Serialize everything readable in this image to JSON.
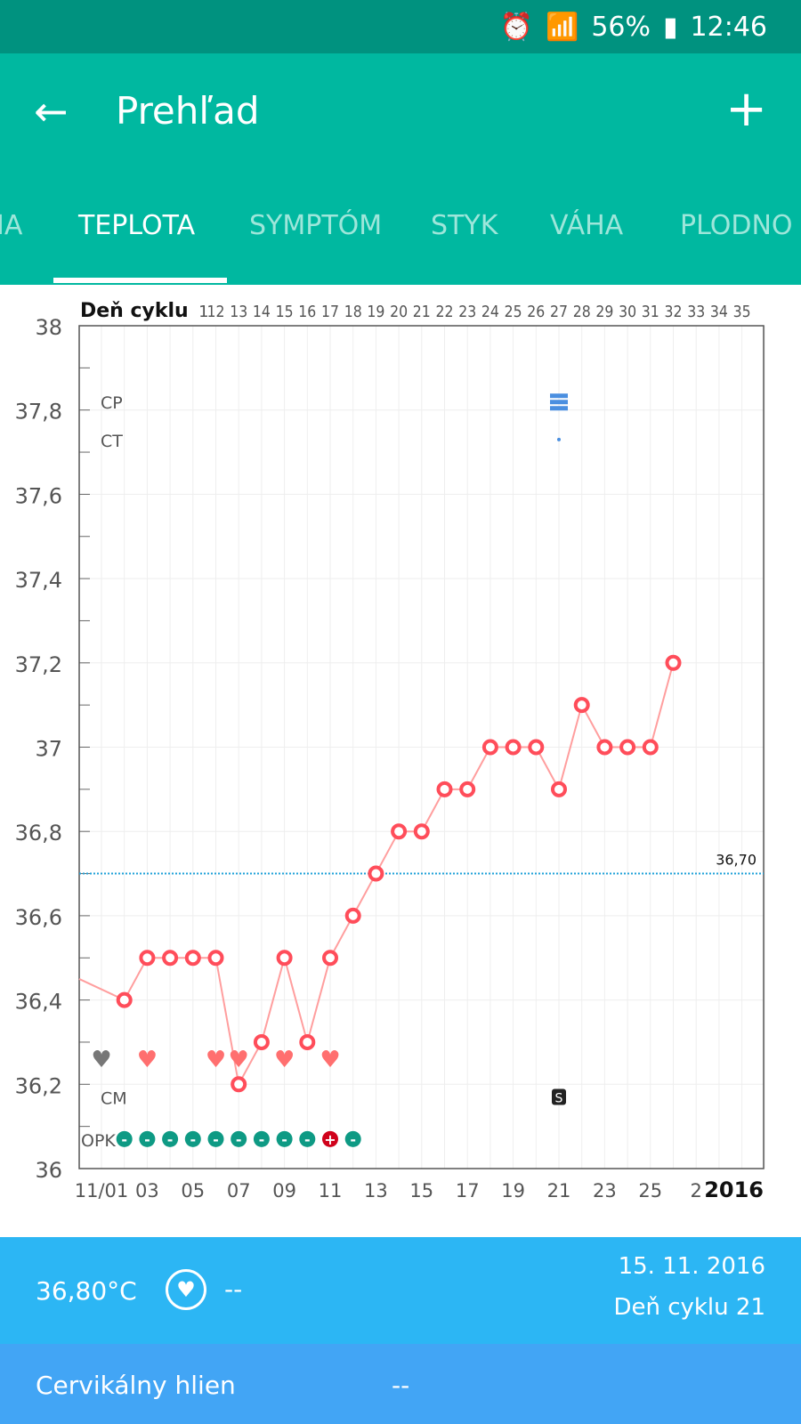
{
  "status_bar": {
    "battery": "56%",
    "time": "12:46"
  },
  "app_bar": {
    "title": "Prehľad",
    "back_icon": "arrow-left-icon",
    "add_icon": "plus-icon"
  },
  "tabs": [
    {
      "label": "IA"
    },
    {
      "label": "TEPLOTA"
    },
    {
      "label": "SYMPTÓM"
    },
    {
      "label": "STYK"
    },
    {
      "label": "VÁHA"
    },
    {
      "label": "PLODNO"
    }
  ],
  "chart_data": {
    "type": "line",
    "top_axis_label": "Deň cyklu",
    "cycle_day_ticks": [
      "1",
      "12",
      "13",
      "14",
      "15",
      "16",
      "17",
      "18",
      "19",
      "20",
      "21",
      "22",
      "23",
      "24",
      "25",
      "26",
      "27",
      "28",
      "29",
      "30",
      "31",
      "32",
      "33",
      "34",
      "35"
    ],
    "ylim": [
      36,
      38
    ],
    "y_ticks": [
      "36",
      "36,2",
      "36,4",
      "36,6",
      "36,8",
      "37",
      "37,2",
      "37,4",
      "37,6",
      "37,8",
      "38"
    ],
    "x_tick_labels": [
      "11/01",
      "03",
      "05",
      "07",
      "09",
      "11",
      "13",
      "15",
      "17",
      "19",
      "21",
      "23",
      "25",
      "2"
    ],
    "year": "2016",
    "x_days": [
      2,
      3,
      4,
      5,
      6,
      7,
      8,
      9,
      10,
      11,
      12,
      13,
      14,
      15,
      16,
      17,
      18,
      19,
      20,
      21,
      22,
      23,
      24,
      25,
      26
    ],
    "temps": [
      36.4,
      36.5,
      36.5,
      36.5,
      36.5,
      36.2,
      36.3,
      36.5,
      36.3,
      36.5,
      36.6,
      36.7,
      36.8,
      36.8,
      36.9,
      36.9,
      37.0,
      37.0,
      37.0,
      36.9,
      37.1,
      37.0,
      37.0,
      37.0,
      37.2
    ],
    "lead_in_temp": 36.45,
    "coverline": {
      "value": 36.7,
      "label": "36,70"
    },
    "row_labels": {
      "cp": "CP",
      "ct": "CT",
      "cm": "CM",
      "opk": "OPK"
    },
    "cp_days": [
      21
    ],
    "ct_days": [
      21
    ],
    "cm": [
      {
        "day": 21,
        "label": "S"
      }
    ],
    "intercourse": [
      {
        "day": 1,
        "color": "#777777"
      },
      {
        "day": 3,
        "color": "#ff6f6f"
      },
      {
        "day": 6,
        "color": "#ff6f6f"
      },
      {
        "day": 7,
        "color": "#ff6f6f"
      },
      {
        "day": 9,
        "color": "#ff6f6f"
      },
      {
        "day": 11,
        "color": "#ff6f6f"
      }
    ],
    "opk": [
      {
        "day": 2,
        "result": "-"
      },
      {
        "day": 3,
        "result": "-"
      },
      {
        "day": 4,
        "result": "-"
      },
      {
        "day": 5,
        "result": "-"
      },
      {
        "day": 6,
        "result": "-"
      },
      {
        "day": 7,
        "result": "-"
      },
      {
        "day": 8,
        "result": "-"
      },
      {
        "day": 9,
        "result": "-"
      },
      {
        "day": 10,
        "result": "-"
      },
      {
        "day": 11,
        "result": "+"
      },
      {
        "day": 12,
        "result": "-"
      }
    ],
    "colors": {
      "line": "#ff9e9e",
      "point": "#ff4d5a",
      "coverline": "#1ea0d8",
      "opk_neg": "#0e9a84",
      "opk_pos": "#d0021b",
      "cp": "#4a8fe0"
    }
  },
  "info": {
    "temperature": "36,80°C",
    "intercourse_value": "--",
    "date": "15. 11. 2016",
    "cycle_day": "Deň cyklu 21"
  },
  "mucus": {
    "label": "Cervikálny hlien",
    "value": "--"
  }
}
